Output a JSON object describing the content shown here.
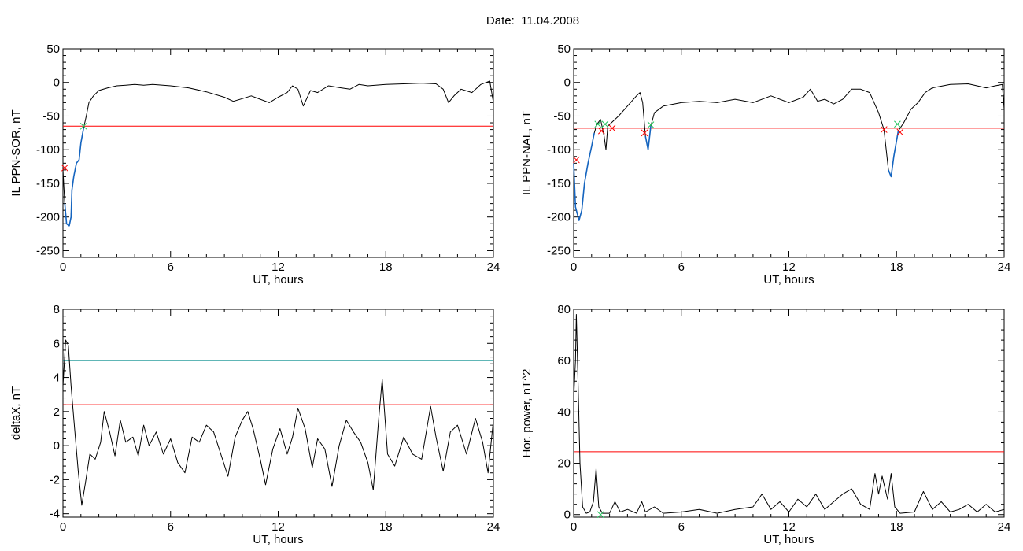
{
  "header": {
    "title": "Date:  11.04.2008"
  },
  "colors": {
    "curve": "#000000",
    "threshold": "#ff0000",
    "threshold2": "#008b8b",
    "highlight": "#1565c0",
    "marker_red": "#ff0000",
    "marker_green": "#22c55e"
  },
  "chart_data": [
    {
      "type": "line",
      "panel": "top-left",
      "xlabel": "UT, hours",
      "ylabel": "IL PPN-SOR, nT",
      "xlim": [
        0,
        24
      ],
      "ylim": [
        -260,
        50
      ],
      "xticks": [
        0,
        6,
        12,
        18,
        24
      ],
      "yticks": [
        -250,
        -200,
        -150,
        -100,
        -50,
        0,
        50
      ],
      "thresholds": [
        {
          "y": -65,
          "color": "red"
        }
      ],
      "series": [
        {
          "values": [
            [
              0,
              -130
            ],
            [
              0.1,
              -180
            ],
            [
              0.2,
              -210
            ],
            [
              0.35,
              -213
            ],
            [
              0.45,
              -200
            ],
            [
              0.5,
              -160
            ],
            [
              0.6,
              -140
            ],
            [
              0.75,
              -120
            ],
            [
              0.9,
              -115
            ],
            [
              1.0,
              -90
            ],
            [
              1.15,
              -68
            ],
            [
              1.3,
              -50
            ],
            [
              1.45,
              -30
            ],
            [
              1.7,
              -20
            ],
            [
              2,
              -12
            ],
            [
              2.5,
              -8
            ],
            [
              3,
              -5
            ],
            [
              3.5,
              -4
            ],
            [
              4,
              -3
            ],
            [
              4.5,
              -4
            ],
            [
              5,
              -3
            ],
            [
              6,
              -5
            ],
            [
              7,
              -8
            ],
            [
              8,
              -14
            ],
            [
              9,
              -22
            ],
            [
              9.5,
              -28
            ],
            [
              10,
              -24
            ],
            [
              10.5,
              -20
            ],
            [
              11,
              -25
            ],
            [
              11.5,
              -30
            ],
            [
              12,
              -22
            ],
            [
              12.5,
              -15
            ],
            [
              12.8,
              -5
            ],
            [
              13.1,
              -10
            ],
            [
              13.4,
              -35
            ],
            [
              13.8,
              -12
            ],
            [
              14.2,
              -15
            ],
            [
              14.8,
              -5
            ],
            [
              15.5,
              -8
            ],
            [
              16,
              -10
            ],
            [
              16.5,
              -3
            ],
            [
              17,
              -5
            ],
            [
              18,
              -3
            ],
            [
              19,
              -2
            ],
            [
              20,
              -1
            ],
            [
              20.8,
              -2
            ],
            [
              21.2,
              -10
            ],
            [
              21.5,
              -30
            ],
            [
              21.8,
              -20
            ],
            [
              22.2,
              -10
            ],
            [
              22.8,
              -15
            ],
            [
              23.3,
              -3
            ],
            [
              23.6,
              0
            ],
            [
              23.8,
              2
            ],
            [
              24,
              -30
            ]
          ]
        }
      ],
      "highlight_segments": [
        [
          0.1,
          1.15
        ]
      ],
      "markers": [
        {
          "x": 0.1,
          "y": -127,
          "color": "red"
        },
        {
          "x": 1.15,
          "y": -65,
          "color": "green"
        }
      ]
    },
    {
      "type": "line",
      "panel": "top-right",
      "xlabel": "UT, hours",
      "ylabel": "IL PPN-NAL, nT",
      "xlim": [
        0,
        24
      ],
      "ylim": [
        -260,
        50
      ],
      "xticks": [
        0,
        6,
        12,
        18,
        24
      ],
      "yticks": [
        -250,
        -200,
        -150,
        -100,
        -50,
        0,
        50
      ],
      "thresholds": [
        {
          "y": -68,
          "color": "red"
        }
      ],
      "series": [
        {
          "values": [
            [
              0,
              -120
            ],
            [
              0.1,
              -185
            ],
            [
              0.3,
              -205
            ],
            [
              0.45,
              -190
            ],
            [
              0.6,
              -150
            ],
            [
              0.8,
              -120
            ],
            [
              1.0,
              -95
            ],
            [
              1.15,
              -75
            ],
            [
              1.3,
              -62
            ],
            [
              1.5,
              -55
            ],
            [
              1.7,
              -80
            ],
            [
              1.8,
              -100
            ],
            [
              1.9,
              -65
            ],
            [
              2.1,
              -60
            ],
            [
              2.5,
              -50
            ],
            [
              3,
              -35
            ],
            [
              3.5,
              -20
            ],
            [
              3.7,
              -15
            ],
            [
              3.85,
              -30
            ],
            [
              4.0,
              -80
            ],
            [
              4.15,
              -100
            ],
            [
              4.3,
              -65
            ],
            [
              4.5,
              -45
            ],
            [
              5,
              -35
            ],
            [
              6,
              -30
            ],
            [
              7,
              -28
            ],
            [
              8,
              -30
            ],
            [
              9,
              -25
            ],
            [
              10,
              -30
            ],
            [
              11,
              -20
            ],
            [
              12,
              -30
            ],
            [
              12.8,
              -22
            ],
            [
              13.2,
              -10
            ],
            [
              13.6,
              -28
            ],
            [
              14,
              -25
            ],
            [
              14.5,
              -32
            ],
            [
              15,
              -25
            ],
            [
              15.5,
              -10
            ],
            [
              16,
              -10
            ],
            [
              16.5,
              -15
            ],
            [
              17,
              -45
            ],
            [
              17.3,
              -70
            ],
            [
              17.55,
              -130
            ],
            [
              17.7,
              -140
            ],
            [
              17.85,
              -110
            ],
            [
              18.1,
              -72
            ],
            [
              18.4,
              -60
            ],
            [
              18.8,
              -40
            ],
            [
              19.2,
              -30
            ],
            [
              19.6,
              -15
            ],
            [
              20,
              -8
            ],
            [
              21,
              -3
            ],
            [
              22,
              -2
            ],
            [
              23,
              -8
            ],
            [
              23.5,
              -5
            ],
            [
              23.9,
              -3
            ],
            [
              24,
              -40
            ]
          ]
        }
      ],
      "highlight_segments": [
        [
          0.0,
          1.2
        ],
        [
          3.95,
          4.35
        ],
        [
          17.35,
          18.1
        ]
      ],
      "markers": [
        {
          "x": 0.15,
          "y": -115,
          "color": "red"
        },
        {
          "x": 1.35,
          "y": -62,
          "color": "green"
        },
        {
          "x": 1.55,
          "y": -72,
          "color": "red"
        },
        {
          "x": 1.75,
          "y": -62,
          "color": "green"
        },
        {
          "x": 2.15,
          "y": -68,
          "color": "red"
        },
        {
          "x": 3.95,
          "y": -75,
          "color": "red"
        },
        {
          "x": 4.3,
          "y": -63,
          "color": "green"
        },
        {
          "x": 17.3,
          "y": -70,
          "color": "red"
        },
        {
          "x": 18.05,
          "y": -62,
          "color": "green"
        },
        {
          "x": 18.2,
          "y": -74,
          "color": "red"
        }
      ]
    },
    {
      "type": "line",
      "panel": "bottom-left",
      "xlabel": "UT, hours",
      "ylabel": "deltaX, nT",
      "xlim": [
        0,
        24
      ],
      "ylim": [
        -4.2,
        8
      ],
      "xticks": [
        0,
        6,
        12,
        18,
        24
      ],
      "yticks": [
        -4,
        -2,
        0,
        2,
        4,
        6,
        8
      ],
      "thresholds": [
        {
          "y": 5.0,
          "color": "teal"
        },
        {
          "y": 2.4,
          "color": "red"
        }
      ],
      "series": [
        {
          "values": [
            [
              0,
              3.5
            ],
            [
              0.15,
              6.2
            ],
            [
              0.3,
              5.9
            ],
            [
              0.45,
              3.5
            ],
            [
              0.65,
              1
            ],
            [
              0.85,
              -1.5
            ],
            [
              1.05,
              -3.5
            ],
            [
              1.25,
              -2.2
            ],
            [
              1.5,
              -0.5
            ],
            [
              1.8,
              -0.8
            ],
            [
              2.1,
              0.2
            ],
            [
              2.3,
              2.0
            ],
            [
              2.6,
              0.8
            ],
            [
              2.9,
              -0.6
            ],
            [
              3.2,
              1.5
            ],
            [
              3.5,
              0.2
            ],
            [
              3.9,
              0.5
            ],
            [
              4.2,
              -0.6
            ],
            [
              4.5,
              1.2
            ],
            [
              4.8,
              0
            ],
            [
              5.2,
              0.8
            ],
            [
              5.6,
              -0.5
            ],
            [
              6,
              0.4
            ],
            [
              6.4,
              -1
            ],
            [
              6.8,
              -1.6
            ],
            [
              7.2,
              0.5
            ],
            [
              7.6,
              0.2
            ],
            [
              8,
              1.2
            ],
            [
              8.4,
              0.8
            ],
            [
              8.8,
              -0.5
            ],
            [
              9.2,
              -1.8
            ],
            [
              9.6,
              0.5
            ],
            [
              10.0,
              1.5
            ],
            [
              10.3,
              2.0
            ],
            [
              10.6,
              1.0
            ],
            [
              11,
              -0.8
            ],
            [
              11.3,
              -2.3
            ],
            [
              11.7,
              -0.2
            ],
            [
              12.1,
              1.0
            ],
            [
              12.5,
              -0.5
            ],
            [
              12.8,
              0.5
            ],
            [
              13.1,
              2.2
            ],
            [
              13.5,
              1
            ],
            [
              13.9,
              -1.3
            ],
            [
              14.2,
              0.4
            ],
            [
              14.6,
              -0.2
            ],
            [
              15,
              -2.4
            ],
            [
              15.4,
              0
            ],
            [
              15.8,
              1.5
            ],
            [
              16.2,
              0.8
            ],
            [
              16.6,
              0.2
            ],
            [
              17,
              -1
            ],
            [
              17.3,
              -2.6
            ],
            [
              17.6,
              1.5
            ],
            [
              17.8,
              3.9
            ],
            [
              18.1,
              -0.5
            ],
            [
              18.5,
              -1.2
            ],
            [
              19,
              0.5
            ],
            [
              19.5,
              -0.5
            ],
            [
              20,
              -0.8
            ],
            [
              20.5,
              2.3
            ],
            [
              20.8,
              0.5
            ],
            [
              21.2,
              -1.5
            ],
            [
              21.6,
              0.8
            ],
            [
              22,
              1.2
            ],
            [
              22.5,
              -0.5
            ],
            [
              23,
              1.6
            ],
            [
              23.4,
              0.2
            ],
            [
              23.7,
              -1.6
            ],
            [
              24,
              1.5
            ]
          ]
        }
      ],
      "highlight_segments": [],
      "markers": []
    },
    {
      "type": "line",
      "panel": "bottom-right",
      "xlabel": "UT, hours",
      "ylabel": "Hor. power, nT^2",
      "xlim": [
        0,
        24
      ],
      "ylim": [
        -1,
        80
      ],
      "xticks": [
        0,
        6,
        12,
        18,
        24
      ],
      "yticks": [
        0,
        20,
        40,
        60,
        80
      ],
      "thresholds": [
        {
          "y": 24.5,
          "color": "red"
        }
      ],
      "series": [
        {
          "values": [
            [
              0,
              45
            ],
            [
              0.1,
              60
            ],
            [
              0.15,
              78
            ],
            [
              0.25,
              50
            ],
            [
              0.35,
              20
            ],
            [
              0.5,
              3
            ],
            [
              0.7,
              0.5
            ],
            [
              0.9,
              1
            ],
            [
              1.1,
              5
            ],
            [
              1.25,
              18
            ],
            [
              1.4,
              3
            ],
            [
              1.6,
              0.5
            ],
            [
              2,
              0.5
            ],
            [
              2.3,
              5
            ],
            [
              2.6,
              1
            ],
            [
              3,
              2
            ],
            [
              3.5,
              0.5
            ],
            [
              3.8,
              5
            ],
            [
              4,
              1
            ],
            [
              4.5,
              3
            ],
            [
              5,
              0.5
            ],
            [
              6,
              1
            ],
            [
              7,
              2
            ],
            [
              8,
              0.5
            ],
            [
              9,
              2
            ],
            [
              10,
              3
            ],
            [
              10.5,
              8
            ],
            [
              11,
              2
            ],
            [
              11.5,
              5
            ],
            [
              12,
              1
            ],
            [
              12.5,
              6
            ],
            [
              13,
              3
            ],
            [
              13.5,
              8
            ],
            [
              14,
              2
            ],
            [
              14.5,
              5
            ],
            [
              15,
              8
            ],
            [
              15.5,
              10
            ],
            [
              16,
              4
            ],
            [
              16.5,
              2
            ],
            [
              16.8,
              16
            ],
            [
              17,
              8
            ],
            [
              17.2,
              15
            ],
            [
              17.5,
              6
            ],
            [
              17.7,
              16
            ],
            [
              17.9,
              3
            ],
            [
              18.2,
              0.5
            ],
            [
              19,
              1
            ],
            [
              19.5,
              9
            ],
            [
              20,
              2
            ],
            [
              20.5,
              5
            ],
            [
              21,
              1
            ],
            [
              21.5,
              2
            ],
            [
              22,
              4
            ],
            [
              22.5,
              1
            ],
            [
              23,
              4
            ],
            [
              23.5,
              1
            ],
            [
              24,
              2
            ]
          ]
        }
      ],
      "highlight_segments": [],
      "markers": [
        {
          "x": 1.5,
          "y": 0,
          "color": "green"
        }
      ]
    }
  ]
}
